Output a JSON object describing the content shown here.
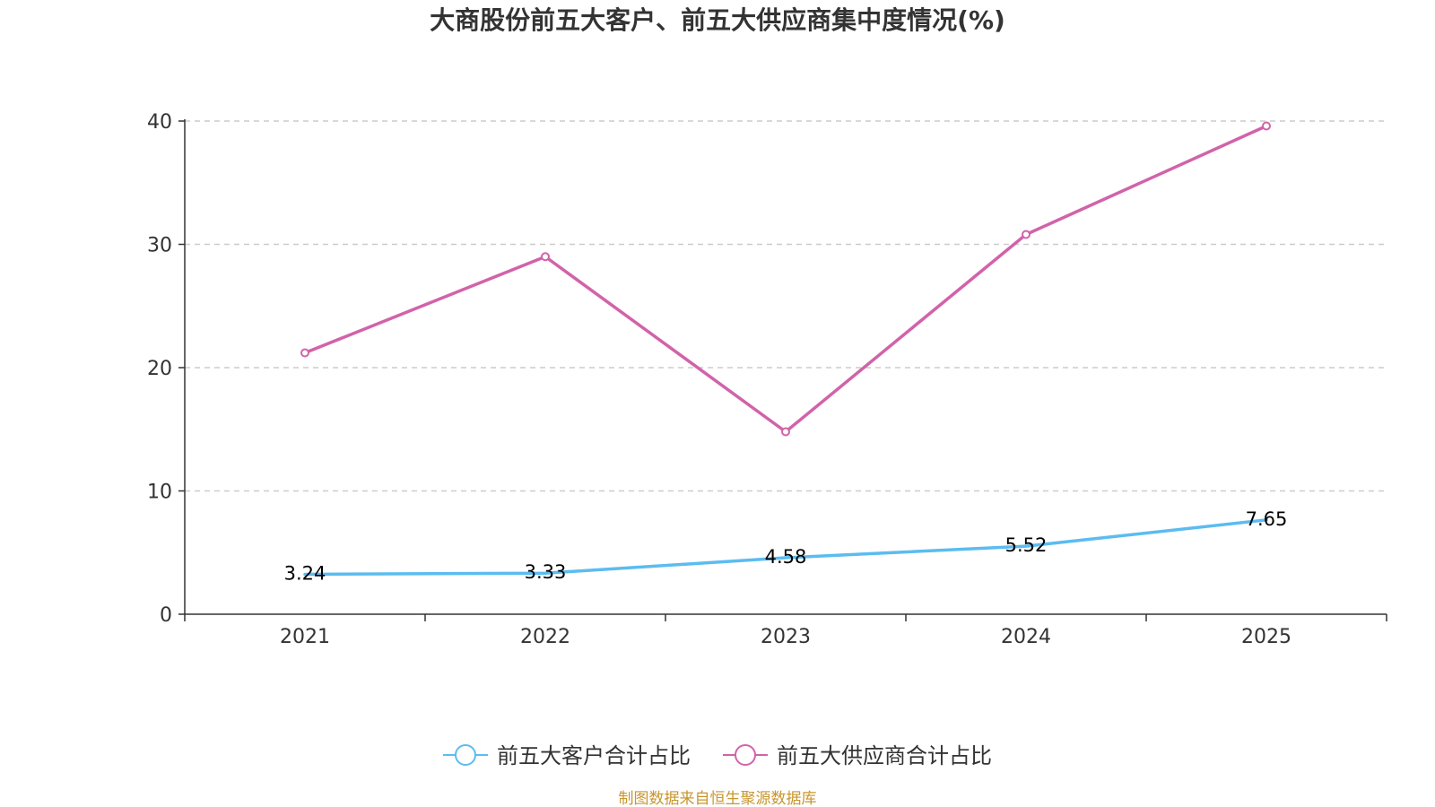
{
  "chart_data": {
    "type": "line",
    "title": "大商股份前五大客户、前五大供应商集中度情况(%)",
    "categories": [
      "2021",
      "2022",
      "2023",
      "2024",
      "2025"
    ],
    "y_ticks": [
      "0",
      "10",
      "20",
      "30",
      "40"
    ],
    "ylim": [
      0,
      40
    ],
    "grid": true,
    "legend_position": "bottom-center",
    "series": [
      {
        "name": "前五大客户合计占比",
        "values": [
          3.24,
          3.33,
          4.58,
          5.52,
          7.65
        ],
        "data_labels": [
          "3.24",
          "3.33",
          "4.58",
          "5.52",
          "7.65"
        ],
        "color": "#5bbcf0",
        "show_labels": true,
        "show_markers": false
      },
      {
        "name": "前五大供应商合计占比",
        "values": [
          21.2,
          29.0,
          14.8,
          30.8,
          39.6
        ],
        "color": "#d163aa",
        "show_labels": false,
        "show_markers": true
      }
    ]
  },
  "source": "制图数据来自恒生聚源数据库"
}
